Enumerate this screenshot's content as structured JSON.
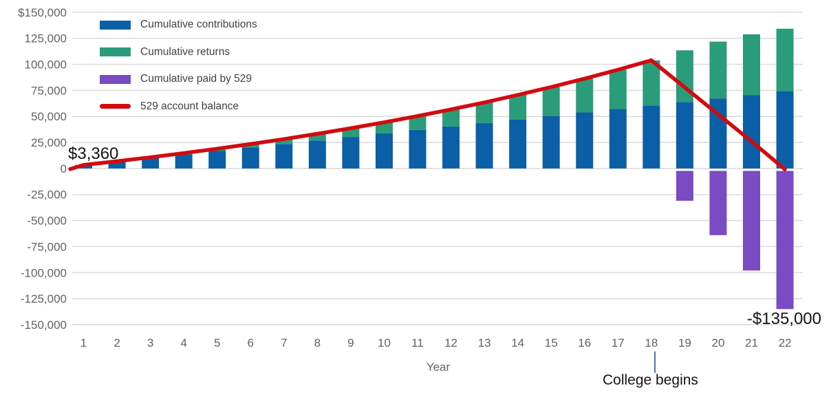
{
  "colors": {
    "contributions": "#0a5fa6",
    "returns": "#2a9c7a",
    "paid": "#7a4bc2",
    "balance_line": "#d20b10",
    "gridline": "#dcdcdc",
    "axis_text": "#5f6368",
    "legend_text": "#3f4245",
    "annotation_text": "#141414",
    "college_tick": "#4576b5"
  },
  "legend": {
    "position": "top-left",
    "entries": [
      {
        "label": "Cumulative contributions",
        "type": "swatch",
        "color_key": "contributions"
      },
      {
        "label": "Cumulative returns",
        "type": "swatch",
        "color_key": "returns"
      },
      {
        "label": "Cumulative paid by 529",
        "type": "swatch",
        "color_key": "paid"
      },
      {
        "label": "529 account balance",
        "type": "line",
        "color_key": "balance_line"
      }
    ]
  },
  "axes": {
    "x_title": "Year",
    "x_tick_labels": [
      "1",
      "2",
      "3",
      "4",
      "5",
      "6",
      "7",
      "8",
      "9",
      "10",
      "11",
      "12",
      "13",
      "14",
      "15",
      "16",
      "17",
      "18",
      "19",
      "20",
      "21",
      "22"
    ],
    "y_tick_labels": [
      "$150,000",
      "125,000",
      "100,000",
      "75,000",
      "50,000",
      "25,000",
      "0",
      "-25,000",
      "-50,000",
      "-75,000",
      "-100,000",
      "-125,000",
      "-150,000"
    ],
    "y_tick_values": [
      150000,
      125000,
      100000,
      75000,
      50000,
      25000,
      0,
      -25000,
      -50000,
      -75000,
      -100000,
      -125000,
      -150000
    ]
  },
  "annotations": {
    "start_value": "$3,360",
    "end_value": "-$135,000",
    "college_begins": "College begins",
    "college_begins_year": 18
  },
  "chart_data": {
    "type": "bar",
    "subtype": "stacked-bars-with-overlaid-line",
    "title": "",
    "xlabel": "Year",
    "ylabel": "",
    "ylim": [
      -150000,
      150000
    ],
    "ytick_step": 25000,
    "grid": "horizontal",
    "legend_position": "top-left",
    "categories": [
      1,
      2,
      3,
      4,
      5,
      6,
      7,
      8,
      9,
      10,
      11,
      12,
      13,
      14,
      15,
      16,
      17,
      18,
      19,
      20,
      21,
      22
    ],
    "series": [
      {
        "name": "Cumulative contributions",
        "render": "stacked-bar",
        "values": [
          3360,
          6720,
          10080,
          13440,
          16800,
          20160,
          23520,
          26880,
          30240,
          33600,
          36960,
          40320,
          43680,
          47040,
          50400,
          53760,
          57120,
          60480,
          63840,
          67200,
          70560,
          73920
        ]
      },
      {
        "name": "Cumulative returns",
        "render": "stacked-bar",
        "values": [
          0,
          200,
          620,
          1260,
          2140,
          3280,
          4680,
          6380,
          8370,
          10690,
          13350,
          16360,
          19760,
          23570,
          27810,
          32500,
          37680,
          43360,
          49600,
          54600,
          58300,
          60300
        ]
      },
      {
        "name": "Cumulative paid by 529",
        "render": "negative-bar",
        "values": [
          0,
          0,
          0,
          0,
          0,
          0,
          0,
          0,
          0,
          0,
          0,
          0,
          0,
          0,
          0,
          0,
          0,
          0,
          -31000,
          -64000,
          -98000,
          -135000
        ]
      },
      {
        "name": "529 account balance",
        "render": "line",
        "values": [
          3360,
          6920,
          10700,
          14700,
          18940,
          23440,
          28200,
          33260,
          38610,
          44290,
          50310,
          56680,
          63440,
          70610,
          78210,
          86260,
          94800,
          103840,
          77900,
          51900,
          26000,
          -800
        ]
      }
    ]
  }
}
